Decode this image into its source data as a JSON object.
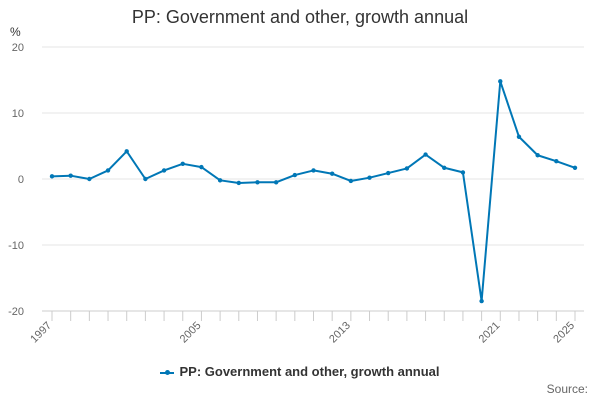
{
  "chart_data": {
    "type": "line",
    "title": "PP: Government and other, growth annual",
    "ylabel": "%",
    "xlabel": "",
    "ylim": [
      -20,
      20
    ],
    "yticks": [
      -20,
      -10,
      0,
      10,
      20
    ],
    "xlim": [
      1997,
      2025
    ],
    "xtick_labels": [
      "1997",
      "2005",
      "2013",
      "2021",
      "2025"
    ],
    "series": [
      {
        "name": "PP: Government and other, growth annual",
        "color": "#0077b6",
        "x": [
          1997,
          1998,
          1999,
          2000,
          2001,
          2002,
          2003,
          2004,
          2005,
          2006,
          2007,
          2008,
          2009,
          2010,
          2011,
          2012,
          2013,
          2014,
          2015,
          2016,
          2017,
          2018,
          2019,
          2020,
          2021,
          2022,
          2023,
          2024,
          2025
        ],
        "values": [
          0.4,
          0.5,
          0.0,
          1.3,
          4.2,
          0.0,
          1.3,
          2.3,
          1.8,
          -0.2,
          -0.6,
          -0.5,
          -0.5,
          0.6,
          1.3,
          0.8,
          -0.3,
          0.2,
          0.9,
          1.6,
          3.7,
          1.7,
          1.0,
          -18.5,
          14.8,
          6.4,
          3.6,
          2.7,
          1.7
        ]
      }
    ],
    "legend": "bottom",
    "grid": true
  },
  "legend_label": "PP: Government and other, growth annual",
  "source_label": "Source:"
}
